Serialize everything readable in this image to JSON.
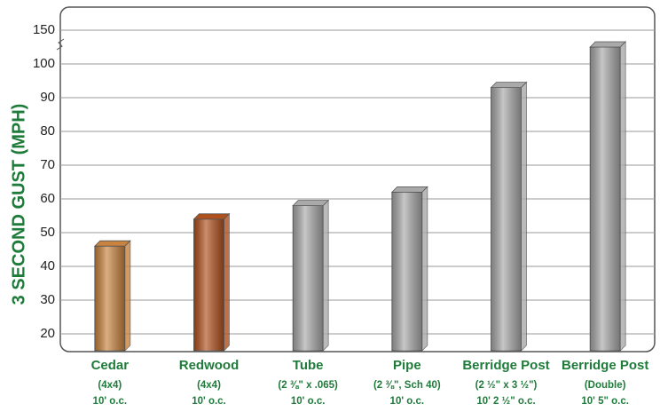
{
  "chart_data": {
    "type": "bar",
    "y_label": "3 SECOND GUST (MPH)",
    "categories": [
      "Cedar",
      "Redwood",
      "Tube",
      "Pipe",
      "Berridge Post",
      "Berridge Post"
    ],
    "category_details": [
      [
        "(4x4)",
        "10' o.c."
      ],
      [
        "(4x4)",
        "10' o.c."
      ],
      [
        "(2 ⅜\" x .065)",
        "10' o.c."
      ],
      [
        "(2 ⅜\", Sch 40)",
        "10' o.c."
      ],
      [
        "(2 ½\" x 3 ½\")",
        "10' 2 ½\" o.c."
      ],
      [
        "(Double)",
        "10' 5\" o.c."
      ]
    ],
    "values": [
      46,
      54,
      58,
      62,
      93,
      125
    ],
    "colors": [
      "#c9833e",
      "#b0501c",
      "#a9a9a9",
      "#a9a9a9",
      "#a9a9a9",
      "#a9a9a9"
    ],
    "ylim": [
      15,
      150
    ],
    "axis_break": [
      100,
      150
    ],
    "yticks": [
      20,
      30,
      40,
      50,
      60,
      70,
      80,
      90,
      100,
      150
    ],
    "grid": true
  }
}
